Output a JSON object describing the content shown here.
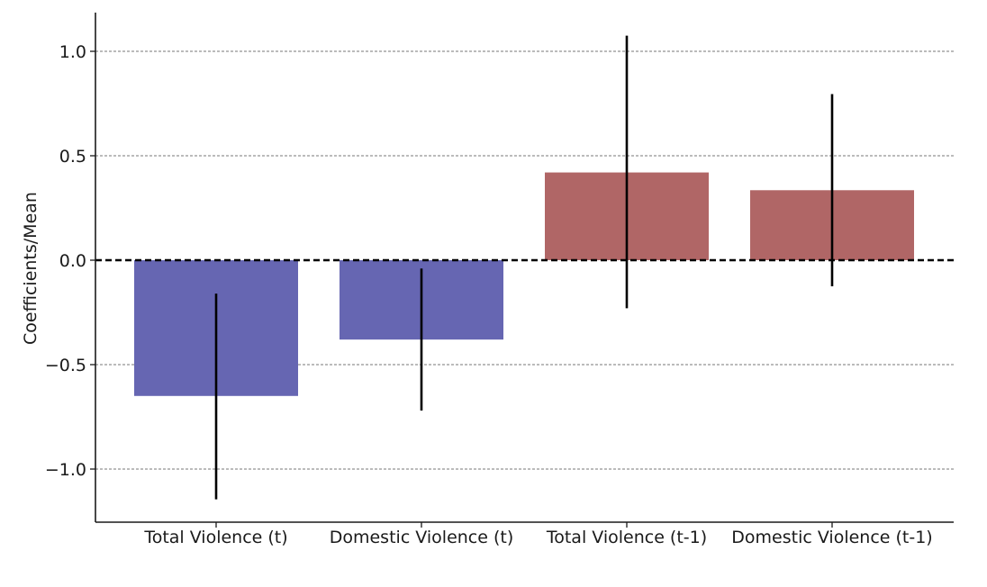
{
  "chart_data": {
    "type": "bar",
    "title": "",
    "xlabel": "",
    "ylabel": "Coefficients/Mean",
    "categories": [
      "Total Violence (t)",
      "Domestic Violence (t)",
      "Total Violence (t-1)",
      "Domestic Violence (t-1)"
    ],
    "values": [
      -0.65,
      -0.38,
      0.42,
      0.335
    ],
    "error_low": [
      -1.145,
      -0.72,
      -0.23,
      -0.125
    ],
    "error_high": [
      -0.16,
      -0.04,
      1.075,
      0.795
    ],
    "bar_colors": [
      "#6666b2",
      "#6666b2",
      "#b06666",
      "#b06666"
    ],
    "ylim": [
      -1.25,
      1.2
    ],
    "yticks": [
      1.0,
      0.5,
      0.0,
      -0.5,
      -1.0
    ],
    "ytick_labels": [
      "1.0",
      "0.5",
      "0.0",
      "−0.5",
      "−1.0"
    ],
    "grid": "horizontal dashed",
    "zero_line": "dashed black"
  }
}
